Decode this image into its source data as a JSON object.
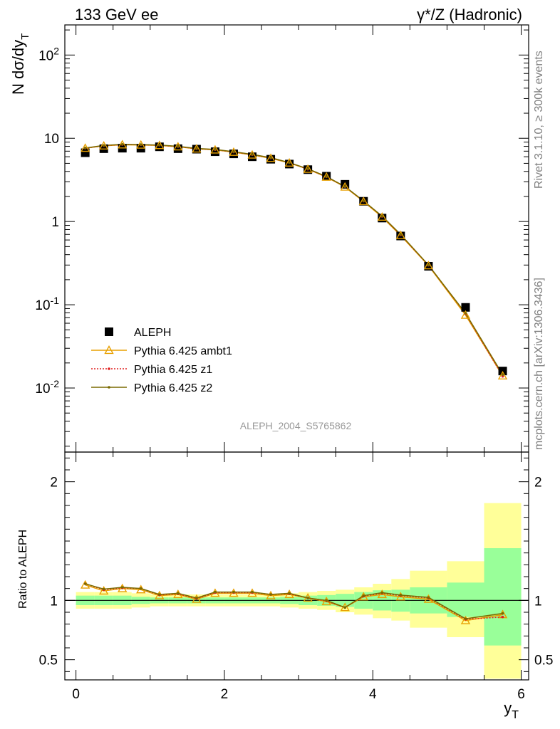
{
  "header": {
    "left": "133 GeV ee",
    "right": "γ*/Z (Hadronic)"
  },
  "side_labels": {
    "top": "Rivet 3.1.10, ≥ 300k events",
    "bottom": "mcplots.cern.ch [arXiv:1306.3436]"
  },
  "watermark": "ALEPH_2004_S5765862",
  "chart_data": [
    {
      "type": "scatter",
      "title": "",
      "ylabel": "N dσ/dy_T",
      "xlabel": "",
      "yscale": "log",
      "xlim": [
        -0.15,
        6.1
      ],
      "ylim": [
        0.0017,
        230
      ],
      "ytick_labels": [
        "10^-2",
        "10^-1",
        "1",
        "10",
        "10^2"
      ],
      "legend_position": "lower-left",
      "x": [
        0.125,
        0.375,
        0.625,
        0.875,
        1.125,
        1.375,
        1.625,
        1.875,
        2.125,
        2.375,
        2.625,
        2.875,
        3.125,
        3.375,
        3.625,
        3.875,
        4.125,
        4.375,
        4.75,
        5.25,
        5.75
      ],
      "series": [
        {
          "name": "ALEPH",
          "color": "#000000",
          "marker": "square",
          "values": [
            6.7,
            7.5,
            7.6,
            7.6,
            7.9,
            7.5,
            7.4,
            6.9,
            6.5,
            6.0,
            5.6,
            4.9,
            4.2,
            3.5,
            2.8,
            1.75,
            1.1,
            0.67,
            0.29,
            0.093,
            0.016
          ]
        },
        {
          "name": "Pythia 6.425 ambt1",
          "color": "#e8a000",
          "marker": "triangle",
          "values": [
            7.6,
            8.1,
            8.35,
            8.3,
            8.2,
            7.9,
            7.45,
            7.25,
            6.8,
            6.3,
            5.75,
            5.05,
            4.25,
            3.42,
            2.6,
            1.74,
            1.13,
            0.68,
            0.295,
            0.075,
            0.014
          ]
        },
        {
          "name": "Pythia 6.425 z1",
          "color": "#e02020",
          "marker": "dot",
          "values": [
            7.6,
            8.15,
            8.4,
            8.35,
            8.25,
            7.95,
            7.5,
            7.3,
            6.85,
            6.35,
            5.8,
            5.1,
            4.25,
            3.45,
            2.62,
            1.76,
            1.15,
            0.69,
            0.298,
            0.078,
            0.0138
          ]
        },
        {
          "name": "Pythia 6.425 z2",
          "color": "#7a6a00",
          "marker": "dot",
          "values": [
            7.65,
            8.2,
            8.45,
            8.4,
            8.3,
            8.0,
            7.55,
            7.35,
            6.9,
            6.4,
            5.85,
            5.1,
            4.3,
            3.47,
            2.63,
            1.77,
            1.16,
            0.7,
            0.3,
            0.079,
            0.0145
          ]
        }
      ]
    },
    {
      "type": "line",
      "title": "",
      "ylabel": "Ratio to ALEPH",
      "xlabel": "y_T",
      "xlim": [
        -0.15,
        6.1
      ],
      "ylim": [
        0.33,
        2.25
      ],
      "xtick_labels": [
        "0",
        "2",
        "4",
        "6"
      ],
      "ytick_labels": [
        "0.5",
        "1",
        "2"
      ],
      "x_edges": [
        0,
        0.25,
        0.5,
        0.75,
        1.0,
        1.25,
        1.5,
        1.75,
        2.0,
        2.25,
        2.5,
        2.75,
        3.0,
        3.25,
        3.5,
        3.75,
        4.0,
        4.25,
        4.5,
        5.0,
        5.5,
        6.0
      ],
      "band_outer": {
        "color": "#ffff99",
        "lo": [
          0.93,
          0.93,
          0.93,
          0.94,
          0.95,
          0.95,
          0.95,
          0.95,
          0.95,
          0.95,
          0.95,
          0.94,
          0.93,
          0.92,
          0.9,
          0.88,
          0.85,
          0.83,
          0.77,
          0.69,
          0.34
        ],
        "hi": [
          1.07,
          1.07,
          1.07,
          1.06,
          1.05,
          1.05,
          1.05,
          1.05,
          1.05,
          1.05,
          1.05,
          1.06,
          1.07,
          1.08,
          1.09,
          1.11,
          1.14,
          1.18,
          1.25,
          1.33,
          1.82
        ]
      },
      "band_inner": {
        "color": "#99ff99",
        "lo": [
          0.96,
          0.96,
          0.96,
          0.97,
          0.975,
          0.975,
          0.975,
          0.975,
          0.975,
          0.975,
          0.975,
          0.97,
          0.96,
          0.955,
          0.945,
          0.93,
          0.915,
          0.905,
          0.89,
          0.86,
          0.62
        ],
        "hi": [
          1.04,
          1.04,
          1.04,
          1.03,
          1.025,
          1.025,
          1.025,
          1.025,
          1.025,
          1.025,
          1.025,
          1.03,
          1.04,
          1.045,
          1.055,
          1.07,
          1.085,
          1.09,
          1.11,
          1.15,
          1.44
        ]
      },
      "x": [
        0.125,
        0.375,
        0.625,
        0.875,
        1.125,
        1.375,
        1.625,
        1.875,
        2.125,
        2.375,
        2.625,
        2.875,
        3.125,
        3.375,
        3.625,
        3.875,
        4.125,
        4.375,
        4.75,
        5.25,
        5.75
      ],
      "series": [
        {
          "name": "Pythia 6.425 ambt1",
          "color": "#e8a000",
          "marker": "triangle",
          "values": [
            1.13,
            1.08,
            1.1,
            1.09,
            1.04,
            1.05,
            1.01,
            1.06,
            1.06,
            1.06,
            1.04,
            1.05,
            1.02,
            0.99,
            0.94,
            1.03,
            1.05,
            1.03,
            1.01,
            0.83,
            0.88
          ]
        },
        {
          "name": "Pythia 6.425 z1",
          "color": "#e02020",
          "marker": "dot",
          "values": [
            1.14,
            1.09,
            1.105,
            1.1,
            1.045,
            1.055,
            1.015,
            1.065,
            1.065,
            1.065,
            1.05,
            1.055,
            1.02,
            0.995,
            0.94,
            1.035,
            1.06,
            1.04,
            1.02,
            0.84,
            0.86
          ]
        },
        {
          "name": "Pythia 6.425 z2",
          "color": "#7a6a00",
          "marker": "dot",
          "values": [
            1.14,
            1.095,
            1.11,
            1.1,
            1.05,
            1.06,
            1.02,
            1.07,
            1.07,
            1.07,
            1.05,
            1.06,
            1.02,
            1.0,
            0.94,
            1.04,
            1.065,
            1.045,
            1.025,
            0.845,
            0.89
          ]
        }
      ]
    }
  ]
}
